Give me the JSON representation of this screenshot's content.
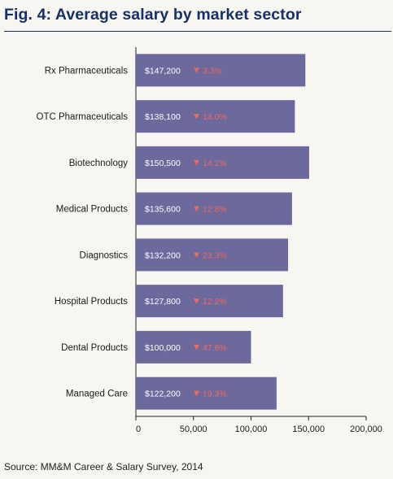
{
  "title": "Fig. 4: Average salary by market sector",
  "source": "Source: MM&M Career & Salary Survey, 2014",
  "colors": {
    "title": "#15306a",
    "bar": "#6c6a9c",
    "change_down": "#f2685c",
    "axis": "#222222"
  },
  "chart_data": {
    "type": "bar",
    "orientation": "horizontal",
    "categories": [
      "Rx Pharmaceuticals",
      "OTC Pharmaceuticals",
      "Biotechnology",
      "Medical Products",
      "Diagnostics",
      "Hospital Products",
      "Dental Products",
      "Managed Care"
    ],
    "values": [
      147200,
      138100,
      150500,
      135600,
      132200,
      127800,
      100000,
      122200
    ],
    "value_labels": [
      "$147,200",
      "$138,100",
      "$150,500",
      "$135,600",
      "$132,200",
      "$127,800",
      "$100,000",
      "$122,200"
    ],
    "change_labels": [
      "3.3%",
      "14.0%",
      "14.2%",
      "12.8%",
      "23.3%",
      "12.2%",
      "47.6%",
      "19.3%"
    ],
    "change_direction": "down",
    "change_icon": "down-triangle-icon",
    "xlim": [
      0,
      200000
    ],
    "xticks": [
      0,
      50000,
      100000,
      150000,
      200000
    ],
    "xtick_labels": [
      "0",
      "50,000",
      "100,000",
      "150,000",
      "200,000"
    ],
    "title": "Fig. 4: Average salary by market sector",
    "xlabel": "",
    "ylabel": "",
    "grid": false,
    "legend": "none"
  }
}
